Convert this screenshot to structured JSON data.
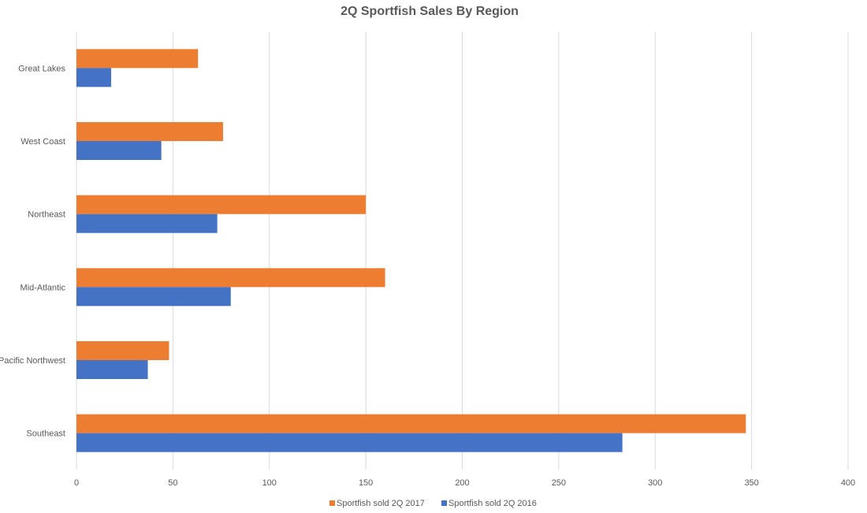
{
  "chart_data": {
    "type": "bar",
    "orientation": "horizontal",
    "title": "2Q Sportfish Sales By Region",
    "xlabel": "",
    "ylabel": "",
    "categories": [
      "Great Lakes",
      "West Coast",
      "Northeast",
      "Mid-Atlantic",
      "Pacific Northwest",
      "Southeast"
    ],
    "series": [
      {
        "name": "Sportfish sold 2Q 2017",
        "color": "#ED7D31",
        "values": [
          63,
          76,
          150,
          160,
          48,
          347
        ]
      },
      {
        "name": "Sportfish sold 2Q 2016",
        "color": "#4472C4",
        "values": [
          18,
          44,
          73,
          80,
          37,
          283
        ]
      }
    ],
    "xlim": [
      0,
      400
    ],
    "xticks": [
      0,
      50,
      100,
      150,
      200,
      250,
      300,
      350,
      400
    ],
    "grid": true,
    "legend_position": "bottom"
  }
}
